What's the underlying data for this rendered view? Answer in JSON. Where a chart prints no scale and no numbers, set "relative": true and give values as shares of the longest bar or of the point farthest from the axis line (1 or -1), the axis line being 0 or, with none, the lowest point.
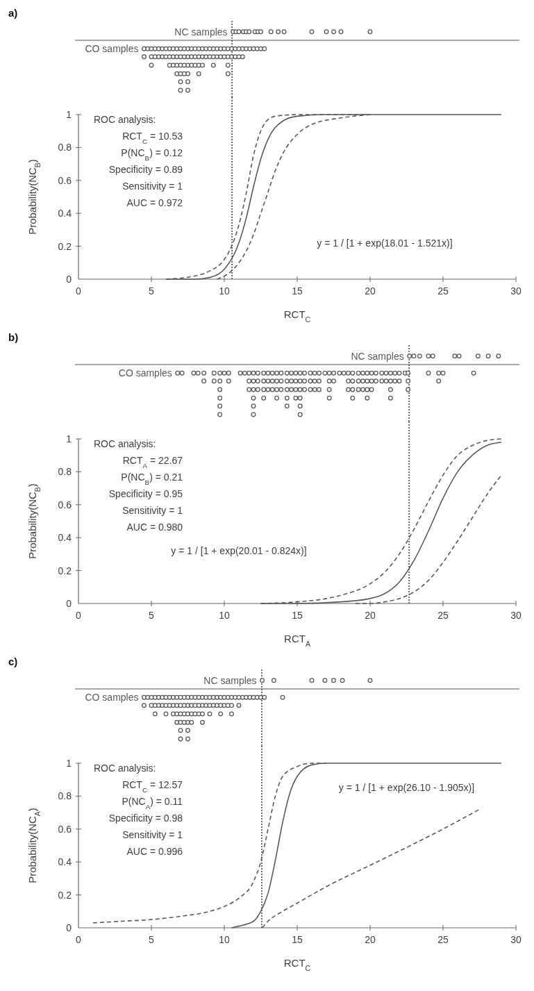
{
  "chart_data": [
    {
      "type": "scatter",
      "title": "a)",
      "relative": true,
      "xlim": [
        0,
        30
      ],
      "ref_lines": [
        {
          "axis": "x",
          "value": 10.53,
          "line_style": "dotted"
        }
      ],
      "series": [
        {
          "name": "NC samples",
          "color": "#595959",
          "x": [
            10.6,
            10.8,
            11,
            11.3,
            11.5,
            11.7,
            12.1,
            12.3,
            12.5,
            13.2,
            13.7,
            14.1,
            16,
            17,
            17.5,
            18,
            20
          ],
          "values": [
            0.17,
            0.17,
            0.17,
            0.17,
            0.17,
            0.17,
            0.17,
            0.17,
            0.17,
            0.17,
            0.17,
            0.17,
            0.17,
            0.17,
            0.17,
            0.17,
            0.17
          ]
        },
        {
          "name": "CO samples",
          "color": "#595959",
          "x": [
            4.5,
            4.5,
            4.75,
            5,
            5,
            5,
            5.25,
            5.25,
            5.5,
            5.5,
            5.75,
            5.75,
            6,
            6,
            6.25,
            6.25,
            6.25,
            6.5,
            6.5,
            6.5,
            6.75,
            6.75,
            6.75,
            6.75,
            7,
            7,
            7,
            7,
            7,
            7,
            7.25,
            7.25,
            7.25,
            7.25,
            7.5,
            7.5,
            7.5,
            7.5,
            7.5,
            7.5,
            7.75,
            7.75,
            7.75,
            8,
            8,
            8,
            8.25,
            8.25,
            8.25,
            8.25,
            8.5,
            8.5,
            8.5,
            8.75,
            8.75,
            9,
            9,
            9.25,
            9.25,
            9.25,
            9.5,
            9.5,
            9.75,
            9.75,
            10,
            10,
            10.25,
            10.25,
            10.25,
            10.25,
            10.5,
            10.5,
            10.75,
            10.75,
            11,
            11,
            11.25,
            11.25,
            11.5,
            11.75,
            12,
            12.25,
            12.5,
            12.75
          ],
          "values": [
            -0.17,
            -0.33,
            -0.17,
            -0.17,
            -0.33,
            -0.5,
            -0.17,
            -0.33,
            -0.17,
            -0.33,
            -0.17,
            -0.33,
            -0.17,
            -0.33,
            -0.17,
            -0.33,
            -0.5,
            -0.17,
            -0.33,
            -0.5,
            -0.17,
            -0.33,
            -0.5,
            -0.67,
            -0.17,
            -0.33,
            -0.5,
            -0.67,
            -0.83,
            -1,
            -0.17,
            -0.33,
            -0.5,
            -0.67,
            -0.17,
            -0.33,
            -0.5,
            -0.67,
            -0.83,
            -1,
            -0.17,
            -0.33,
            -0.5,
            -0.17,
            -0.33,
            -0.5,
            -0.17,
            -0.33,
            -0.5,
            -0.67,
            -0.17,
            -0.33,
            -0.5,
            -0.17,
            -0.33,
            -0.17,
            -0.33,
            -0.17,
            -0.33,
            -0.5,
            -0.17,
            -0.33,
            -0.17,
            -0.33,
            -0.17,
            -0.33,
            -0.17,
            -0.33,
            -0.5,
            -0.67,
            -0.17,
            -0.33,
            -0.17,
            -0.33,
            -0.17,
            -0.33,
            -0.17,
            -0.33,
            -0.17,
            -0.17,
            -0.17,
            -0.17,
            -0.17,
            -0.17
          ]
        }
      ]
    },
    {
      "type": "line",
      "xlabel": "RCT$_{C}$",
      "ylabel": "Probability(NC$_{B}$)",
      "xlim": [
        0,
        30
      ],
      "ylim": [
        0,
        1
      ],
      "xticks": [
        0,
        5,
        10,
        15,
        20,
        25,
        30
      ],
      "yticks": [
        0,
        0.2,
        0.4,
        0.6,
        0.8,
        1
      ],
      "ref_lines": [
        {
          "axis": "x",
          "value": 10.53,
          "line_style": "dotted"
        }
      ],
      "annotations": [
        "ROC analysis:",
        "RCT$_{C}$ = 10.53",
        "P(NC$_{B}$) = 0.12",
        "Specificity = 0.89",
        "Sensitivity = 1",
        "AUC = 0.972",
        "y = 1 / [1 + exp(18.01 - 1.521x)]"
      ],
      "series": [
        {
          "color": "#595959",
          "line_style": "solid",
          "x": [
            6,
            8,
            9,
            10,
            11,
            11.5,
            12,
            12.5,
            13,
            14,
            15,
            17,
            20,
            25,
            29
          ],
          "values": [
            0,
            0,
            0.01,
            0.06,
            0.22,
            0.37,
            0.56,
            0.73,
            0.85,
            0.96,
            0.99,
            1,
            1,
            1,
            1
          ]
        },
        {
          "color": "#595959",
          "line_style": "dashed",
          "x": [
            6,
            8,
            9,
            10,
            10.5,
            11,
            11.5,
            12,
            12.5,
            13,
            13.5,
            15,
            20
          ],
          "values": [
            0,
            0.02,
            0.05,
            0.12,
            0.2,
            0.33,
            0.52,
            0.75,
            0.9,
            0.97,
            0.99,
            1,
            1
          ]
        },
        {
          "color": "#595959",
          "line_style": "dashed",
          "x": [
            9.5,
            10.5,
            11,
            11.5,
            12,
            12.5,
            13,
            13.5,
            14,
            15,
            16,
            18,
            20
          ],
          "values": [
            0,
            0.05,
            0.1,
            0.17,
            0.27,
            0.4,
            0.53,
            0.66,
            0.76,
            0.88,
            0.94,
            0.98,
            1
          ]
        }
      ]
    },
    {
      "type": "scatter",
      "title": "b)",
      "relative": true,
      "xlim": [
        0,
        30
      ],
      "ref_lines": [
        {
          "axis": "x",
          "value": 22.67,
          "line_style": "dotted"
        }
      ],
      "series": [
        {
          "name": "NC samples",
          "color": "#595959",
          "x": [
            22.7,
            23,
            23.4,
            24,
            24.3,
            25.8,
            26.1,
            27.4,
            28.1,
            28.8
          ],
          "values": [
            0.17,
            0.17,
            0.17,
            0.17,
            0.17,
            0.17,
            0.17,
            0.17,
            0.17,
            0.17
          ]
        },
        {
          "name": "CO samples",
          "color": "#595959",
          "x": [
            6.8,
            7.1,
            7.9,
            8.2,
            8.6,
            8.6,
            9.3,
            9.3,
            9.7,
            9.7,
            9.7,
            9.7,
            9.7,
            9.7,
            10,
            10.3,
            10.3,
            11.1,
            11.4,
            11.7,
            11.7,
            11.7,
            12,
            12,
            12,
            12,
            12,
            12,
            12.3,
            12.3,
            12.3,
            12.7,
            12.7,
            12.7,
            12.7,
            13,
            13,
            13,
            13.3,
            13.3,
            13.3,
            13.6,
            13.6,
            13.6,
            13.6,
            13.9,
            13.9,
            13.9,
            14.3,
            14.3,
            14.3,
            14.3,
            14.3,
            14.6,
            14.6,
            14.6,
            14.9,
            14.9,
            14.9,
            14.9,
            15.2,
            15.2,
            15.2,
            15.2,
            15.2,
            15.2,
            15.5,
            15.5,
            15.5,
            15.9,
            15.9,
            15.9,
            16.2,
            16.2,
            16.2,
            16.5,
            16.5,
            16.5,
            16.9,
            17.2,
            17.2,
            17.2,
            17.2,
            17.5,
            17.5,
            17.9,
            18.2,
            18.5,
            18.5,
            18.5,
            18.8,
            18.8,
            18.8,
            18.8,
            19.2,
            19.2,
            19.2,
            19.5,
            19.5,
            19.5,
            19.8,
            19.8,
            19.8,
            19.8,
            20.1,
            20.1,
            20.1,
            20.4,
            20.4,
            20.8,
            20.8,
            21.1,
            21.1,
            21.4,
            21.4,
            21.4,
            21.4,
            21.7,
            21.7,
            22,
            22,
            22.4,
            22.6,
            22.6,
            22.6,
            24,
            24.7,
            24.7,
            25,
            27.1
          ],
          "values": [
            -0.17,
            -0.17,
            -0.17,
            -0.17,
            -0.17,
            -0.33,
            -0.17,
            -0.33,
            -0.17,
            -0.33,
            -0.5,
            -0.67,
            -0.83,
            -1,
            -0.17,
            -0.17,
            -0.33,
            -0.17,
            -0.17,
            -0.17,
            -0.33,
            -0.5,
            -0.17,
            -0.33,
            -0.5,
            -0.67,
            -0.83,
            -1,
            -0.17,
            -0.33,
            -0.5,
            -0.17,
            -0.33,
            -0.5,
            -0.67,
            -0.17,
            -0.33,
            -0.5,
            -0.17,
            -0.33,
            -0.5,
            -0.17,
            -0.33,
            -0.5,
            -0.67,
            -0.17,
            -0.33,
            -0.5,
            -0.17,
            -0.33,
            -0.5,
            -0.67,
            -0.83,
            -0.17,
            -0.33,
            -0.5,
            -0.17,
            -0.33,
            -0.5,
            -0.67,
            -0.17,
            -0.33,
            -0.5,
            -0.67,
            -0.83,
            -1,
            -0.17,
            -0.33,
            -0.5,
            -0.17,
            -0.33,
            -0.5,
            -0.17,
            -0.33,
            -0.5,
            -0.17,
            -0.33,
            -0.5,
            -0.17,
            -0.17,
            -0.33,
            -0.5,
            -0.67,
            -0.17,
            -0.33,
            -0.17,
            -0.17,
            -0.17,
            -0.33,
            -0.5,
            -0.17,
            -0.33,
            -0.5,
            -0.67,
            -0.17,
            -0.33,
            -0.5,
            -0.17,
            -0.33,
            -0.5,
            -0.17,
            -0.33,
            -0.5,
            -0.67,
            -0.17,
            -0.33,
            -0.5,
            -0.17,
            -0.33,
            -0.17,
            -0.33,
            -0.17,
            -0.33,
            -0.17,
            -0.33,
            -0.5,
            -0.67,
            -0.17,
            -0.33,
            -0.17,
            -0.33,
            -0.17,
            -0.17,
            -0.33,
            -0.5,
            -0.17,
            -0.17,
            -0.33,
            -0.17,
            -0.17
          ]
        }
      ]
    },
    {
      "type": "line",
      "xlabel": "RCT$_{A}$",
      "ylabel": "Probability(NC$_{B}$)",
      "xlim": [
        0,
        30
      ],
      "ylim": [
        0,
        1
      ],
      "xticks": [
        0,
        5,
        10,
        15,
        20,
        25,
        30
      ],
      "yticks": [
        0,
        0.2,
        0.4,
        0.6,
        0.8,
        1
      ],
      "ref_lines": [
        {
          "axis": "x",
          "value": 22.67,
          "line_style": "dotted"
        }
      ],
      "annotations": [
        "ROC analysis:",
        "RCT$_{A}$ = 22.67",
        "P(NC$_{B}$) = 0.21",
        "Specificity = 0.95",
        "Sensitivity = 1",
        "AUC = 0.980",
        "y = 1 / [1 + exp(20.01 - 0.824x)]"
      ],
      "series": [
        {
          "color": "#595959",
          "line_style": "solid",
          "x": [
            12.5,
            15,
            18,
            20,
            21,
            22,
            23,
            24,
            25,
            26,
            27,
            28,
            29
          ],
          "values": [
            0,
            0,
            0.01,
            0.03,
            0.06,
            0.13,
            0.26,
            0.44,
            0.64,
            0.8,
            0.9,
            0.96,
            0.98
          ]
        },
        {
          "color": "#595959",
          "line_style": "dashed",
          "x": [
            12.5,
            15,
            17,
            18,
            20,
            21,
            22,
            23,
            24,
            25,
            26,
            27,
            28,
            29
          ],
          "values": [
            0,
            0.01,
            0.03,
            0.05,
            0.12,
            0.19,
            0.3,
            0.45,
            0.62,
            0.78,
            0.9,
            0.96,
            0.99,
            1
          ]
        },
        {
          "color": "#595959",
          "line_style": "dashed",
          "x": [
            19,
            20,
            21,
            22,
            23,
            24,
            25,
            26,
            27,
            28,
            29
          ],
          "values": [
            0,
            0,
            0.01,
            0.03,
            0.07,
            0.14,
            0.25,
            0.38,
            0.52,
            0.66,
            0.78
          ]
        }
      ]
    },
    {
      "type": "scatter",
      "title": "c)",
      "relative": true,
      "xlim": [
        0,
        30
      ],
      "ref_lines": [
        {
          "axis": "x",
          "value": 12.57,
          "line_style": "dotted"
        }
      ],
      "series": [
        {
          "name": "NC samples",
          "color": "#595959",
          "x": [
            12.6,
            13.4,
            16,
            16.9,
            17.5,
            18.1,
            20
          ],
          "values": [
            0.17,
            0.17,
            0.17,
            0.17,
            0.17,
            0.17,
            0.17
          ]
        },
        {
          "name": "CO samples",
          "color": "#595959",
          "x": [
            4.5,
            4.5,
            4.75,
            5,
            5,
            5.25,
            5.25,
            5.25,
            5.5,
            5.5,
            5.75,
            5.75,
            6,
            6,
            6,
            6.25,
            6.25,
            6.5,
            6.5,
            6.5,
            6.75,
            6.75,
            6.75,
            6.75,
            7,
            7,
            7,
            7,
            7,
            7,
            7.25,
            7.25,
            7.25,
            7.25,
            7.5,
            7.5,
            7.5,
            7.5,
            7.5,
            7.5,
            7.75,
            7.75,
            7.75,
            7.75,
            8,
            8,
            8,
            8.25,
            8.25,
            8.25,
            8.5,
            8.5,
            8.5,
            8.5,
            8.75,
            8.75,
            9,
            9,
            9,
            9.25,
            9.25,
            9.5,
            9.5,
            9.75,
            9.75,
            9.75,
            10,
            10,
            10.25,
            10.25,
            10.5,
            10.5,
            10.5,
            10.75,
            11,
            11,
            11.25,
            11.5,
            11.75,
            12,
            12.25,
            12.5,
            12.75,
            14
          ],
          "values": [
            -0.17,
            -0.33,
            -0.17,
            -0.17,
            -0.33,
            -0.17,
            -0.33,
            -0.5,
            -0.17,
            -0.33,
            -0.17,
            -0.33,
            -0.17,
            -0.33,
            -0.5,
            -0.17,
            -0.33,
            -0.17,
            -0.33,
            -0.5,
            -0.17,
            -0.33,
            -0.5,
            -0.67,
            -0.17,
            -0.33,
            -0.5,
            -0.67,
            -0.83,
            -1,
            -0.17,
            -0.33,
            -0.5,
            -0.67,
            -0.17,
            -0.33,
            -0.5,
            -0.67,
            -0.83,
            -1,
            -0.17,
            -0.33,
            -0.5,
            -0.67,
            -0.17,
            -0.33,
            -0.5,
            -0.17,
            -0.33,
            -0.5,
            -0.17,
            -0.33,
            -0.5,
            -0.67,
            -0.17,
            -0.33,
            -0.17,
            -0.33,
            -0.5,
            -0.17,
            -0.33,
            -0.17,
            -0.33,
            -0.17,
            -0.33,
            -0.5,
            -0.17,
            -0.33,
            -0.17,
            -0.33,
            -0.17,
            -0.33,
            -0.5,
            -0.17,
            -0.17,
            -0.33,
            -0.17,
            -0.17,
            -0.17,
            -0.17,
            -0.17,
            -0.17,
            -0.17,
            -0.17
          ]
        }
      ]
    },
    {
      "type": "line",
      "xlabel": "RCT$_{C}$",
      "ylabel": "Probability(NC$_{A}$)",
      "xlim": [
        0,
        30
      ],
      "ylim": [
        0,
        1
      ],
      "xticks": [
        0,
        5,
        10,
        15,
        20,
        25,
        30
      ],
      "yticks": [
        0,
        0.2,
        0.4,
        0.6,
        0.8,
        1
      ],
      "ref_lines": [
        {
          "axis": "x",
          "value": 12.57,
          "line_style": "dotted"
        }
      ],
      "annotations": [
        "ROC analysis:",
        "RCT$_{C}$ = 12.57",
        "P(NC$_{A}$) = 0.11",
        "Specificity = 0.98",
        "Sensitivity = 1",
        "AUC = 0.996",
        "y = 1 / [1 + exp(26.10 - 1.905x)]"
      ],
      "series": [
        {
          "color": "#595959",
          "line_style": "solid",
          "x": [
            10.5,
            11,
            12,
            12.5,
            13,
            13.5,
            14,
            14.5,
            15,
            16,
            17,
            20,
            25,
            29
          ],
          "values": [
            0,
            0.01,
            0.04,
            0.1,
            0.21,
            0.41,
            0.64,
            0.82,
            0.92,
            0.99,
            1,
            1,
            1,
            1
          ]
        },
        {
          "color": "#595959",
          "line_style": "dashed",
          "x": [
            1,
            3,
            5,
            7,
            9,
            10,
            11,
            12,
            12.5,
            13,
            13.5,
            14,
            15,
            16,
            17
          ],
          "values": [
            0.03,
            0.04,
            0.05,
            0.07,
            0.1,
            0.13,
            0.18,
            0.28,
            0.4,
            0.6,
            0.8,
            0.92,
            0.98,
            1,
            1
          ]
        },
        {
          "color": "#595959",
          "line_style": "dashed",
          "x": [
            12.6,
            13,
            14,
            15,
            17,
            20,
            23,
            25,
            27.5
          ],
          "values": [
            0,
            0.04,
            0.1,
            0.15,
            0.25,
            0.38,
            0.51,
            0.6,
            0.72
          ]
        }
      ]
    }
  ]
}
